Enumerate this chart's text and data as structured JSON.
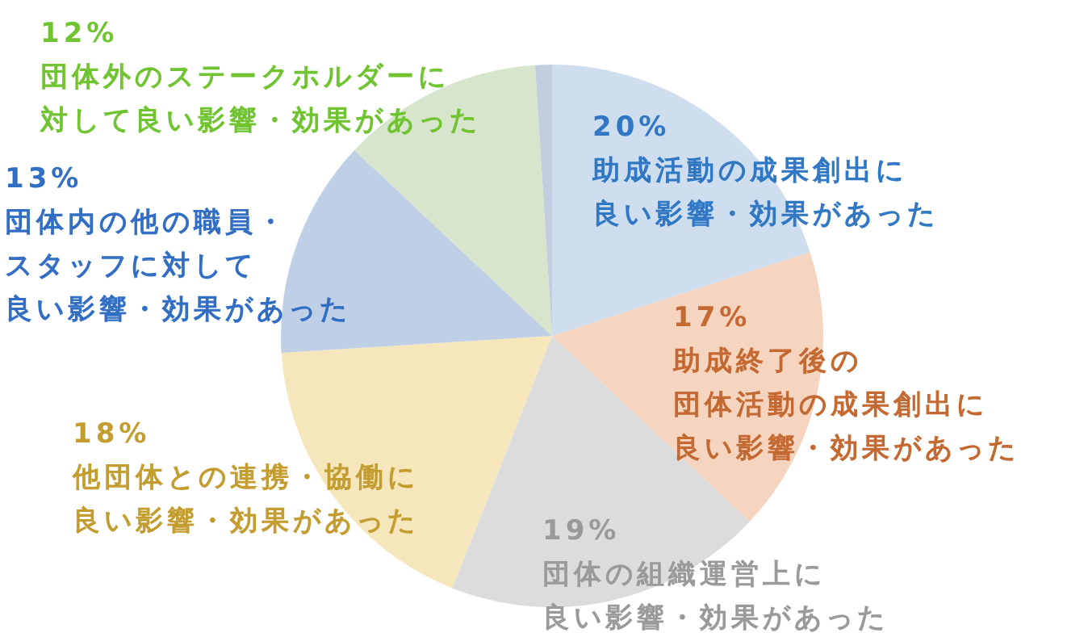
{
  "chart_data": {
    "type": "pie",
    "categories": [
      "助成活動の成果創出に良い影響・効果があった",
      "助成終了後の団体活動の成果創出に良い影響・効果があった",
      "団体の組織運営上に良い影響・効果があった",
      "他団体との連携・協働に良い影響・効果があった",
      "団体内の他の職員・スタッフに対して良い影響・効果があった",
      "団体外のステークホルダーに対して良い影響・効果があった",
      null
    ],
    "values": [
      20,
      17,
      19,
      18,
      13,
      12,
      1
    ],
    "value_labels": [
      "20%",
      "17%",
      "19%",
      "18%",
      "13%",
      "12%",
      null
    ],
    "colors": [
      "#cfdeee",
      "#f6d5c0",
      "#dcdcdc",
      "#f6e6bb",
      "#bfcfe6",
      "#d7e5cc",
      "#c2cedf"
    ]
  }
}
